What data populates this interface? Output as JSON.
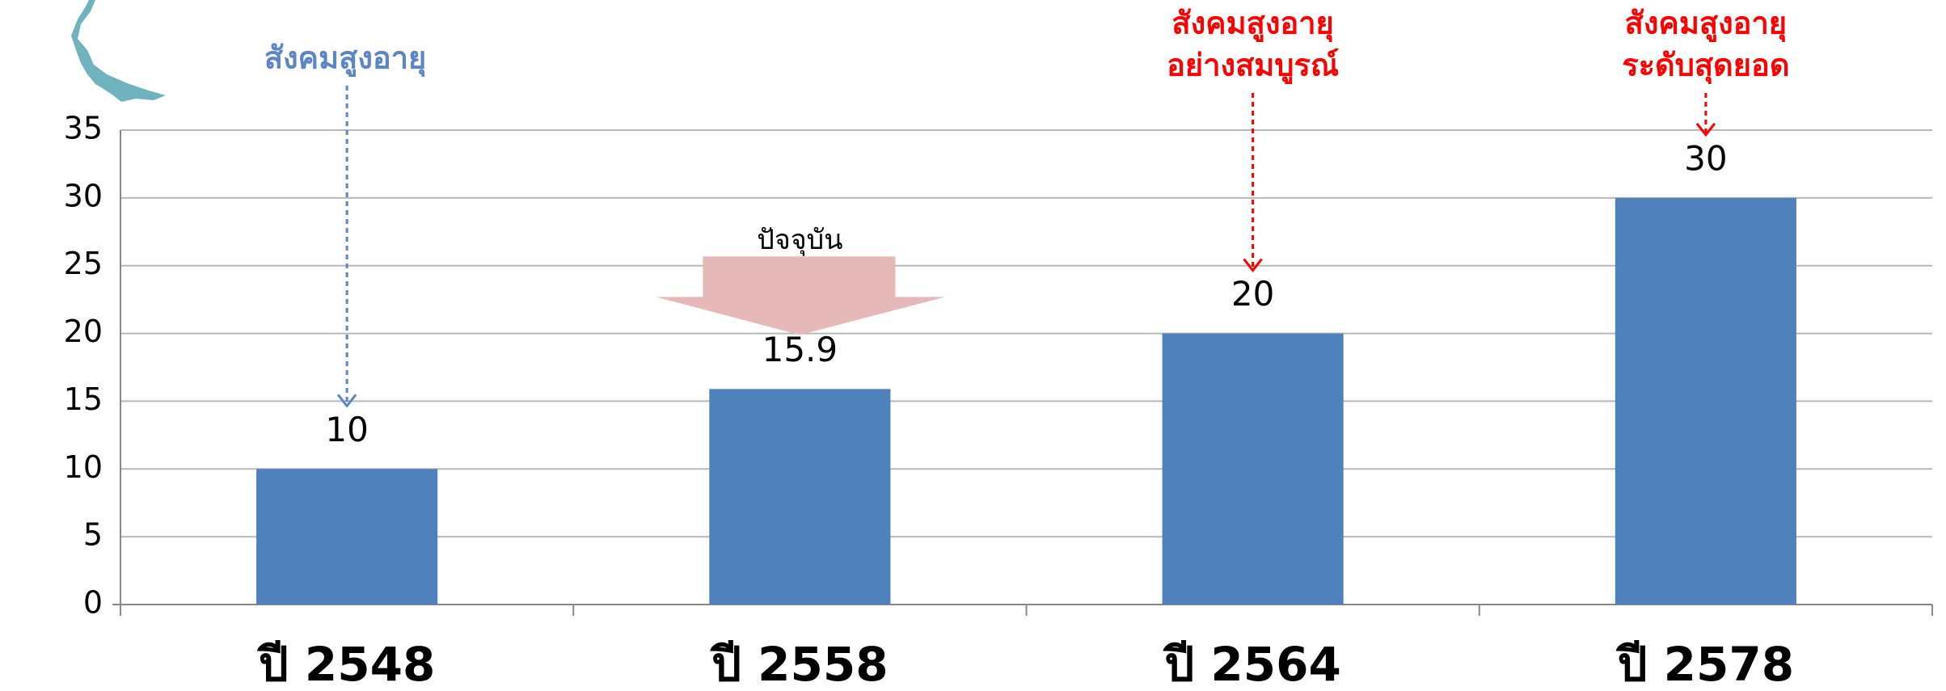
{
  "chart_data": {
    "type": "bar",
    "categories": [
      "ปี 2548",
      "ปี 2558",
      "ปี 2564",
      "ปี 2578"
    ],
    "values": [
      10,
      15.9,
      20,
      30
    ],
    "color": "#4f81bd",
    "ylim": [
      0,
      35
    ],
    "yticks": [
      0,
      5,
      10,
      15,
      20,
      25,
      30,
      35
    ],
    "grid": true,
    "annotations": [
      {
        "text": [
          "สังคมสูงอายุ"
        ],
        "target": "ปี 2548",
        "color": "#5b86c5",
        "style": "dashed-arrow"
      },
      {
        "text": [
          "ปัจจุบัน"
        ],
        "target": "ปี 2558",
        "color": "#e6b8b7",
        "style": "block-arrow"
      },
      {
        "text": [
          "สังคมสูงอายุ",
          "อย่างสมบูรณ์"
        ],
        "target": "ปี 2564",
        "color": "#ff0000",
        "style": "dashed-arrow"
      },
      {
        "text": [
          "สังคมสูงอายุ",
          "ระดับสุดยอด"
        ],
        "target": "ปี 2578",
        "color": "#ff0000",
        "style": "dashed-arrow"
      }
    ]
  }
}
